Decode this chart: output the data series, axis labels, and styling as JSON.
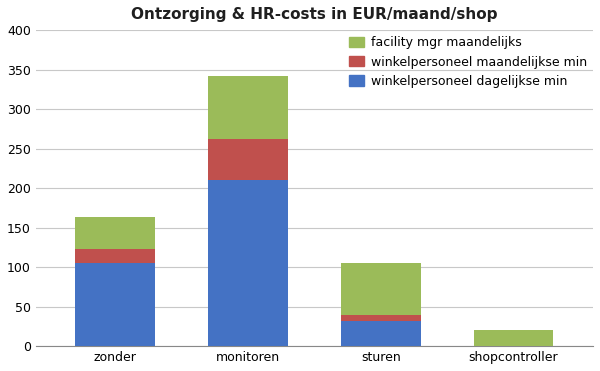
{
  "categories": [
    "zonder",
    "monitoren",
    "sturen",
    "shopcontroller"
  ],
  "series": {
    "winkelpersoneel dagelijkse min": [
      105,
      210,
      32,
      0
    ],
    "winkelpersoneel maandelijkse min": [
      18,
      52,
      8,
      0
    ],
    "facility mgr maandelijks": [
      40,
      80,
      65,
      20
    ]
  },
  "colors": {
    "winkelpersoneel dagelijkse min": "#4472C4",
    "winkelpersoneel maandelijkse min": "#C0504D",
    "facility mgr maandelijks": "#9BBB59"
  },
  "title": "Ontzorging & HR-costs in EUR/maand/shop",
  "ylim": [
    0,
    400
  ],
  "yticks": [
    0,
    50,
    100,
    150,
    200,
    250,
    300,
    350,
    400
  ],
  "bar_width": 0.6,
  "legend_order": [
    "facility mgr maandelijks",
    "winkelpersoneel maandelijkse min",
    "winkelpersoneel dagelijkse min"
  ],
  "background_color": "#FFFFFF",
  "plot_area_color": "#FFFFFF",
  "grid_color": "#C8C8C8",
  "title_fontsize": 11,
  "tick_fontsize": 9,
  "legend_fontsize": 9
}
